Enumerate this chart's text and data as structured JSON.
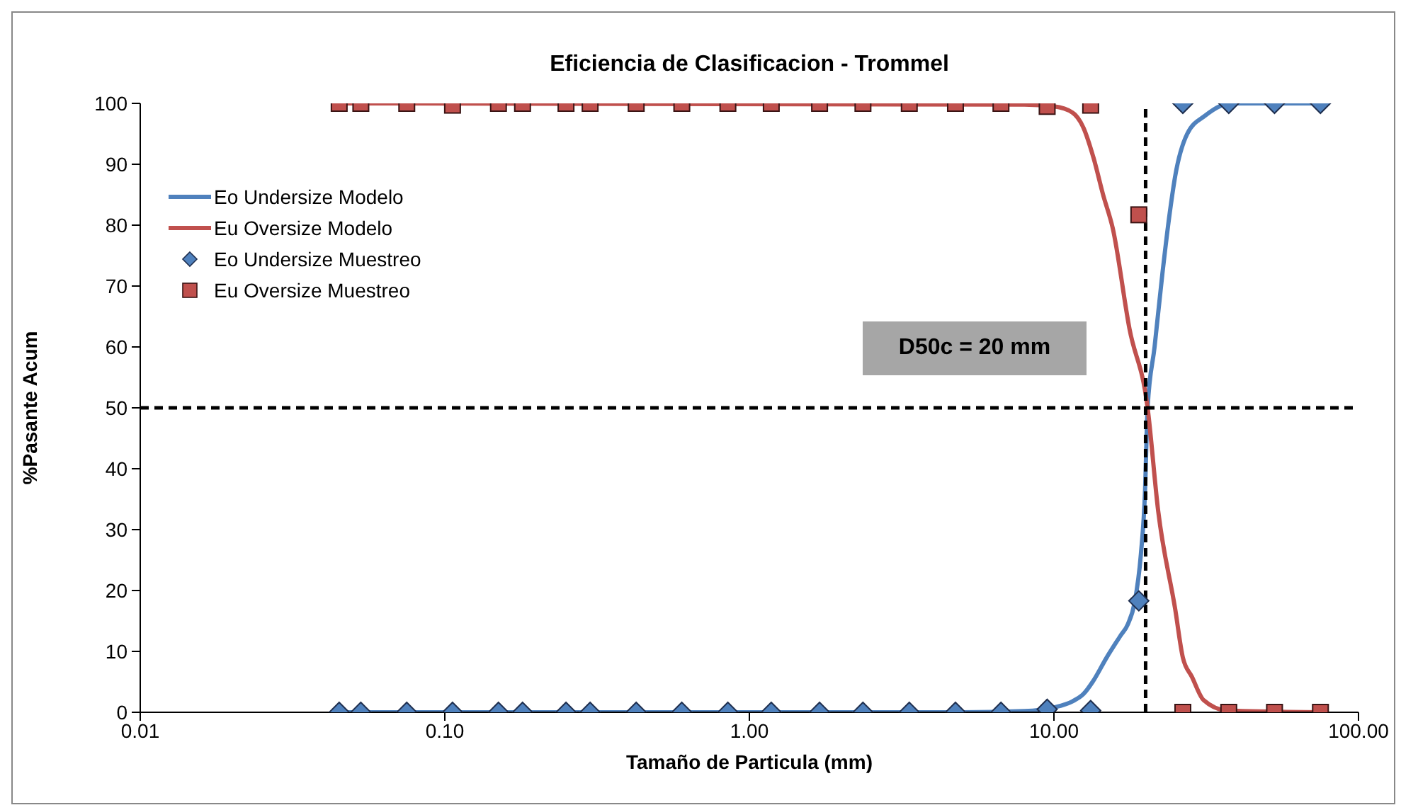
{
  "chart_data": {
    "type": "line",
    "title": "Eficiencia de Clasificacion - Trommel",
    "xlabel": "Tamaño de Particula (mm)",
    "ylabel": "%Pasante Acum",
    "log": "x",
    "xlim": [
      0.01,
      100
    ],
    "xticks": [
      0.01,
      {
        "value": 0.1,
        "label": "0.10"
      },
      {
        "value": 1,
        "label": "1.00"
      },
      {
        "value": 10,
        "label": "10.00"
      },
      {
        "value": 100,
        "label": "100.00"
      }
    ],
    "ylim": [
      0,
      100
    ],
    "yticks": [
      0,
      10,
      20,
      30,
      40,
      50,
      60,
      70,
      80,
      90,
      100
    ],
    "grid": false,
    "legend": "top left",
    "annotations": [
      "D50c = 20 mm"
    ],
    "ref_lines": [
      {
        "axis": "x",
        "value": 20,
        "color": "#000000",
        "line_style": "dashed"
      },
      {
        "axis": "y",
        "value": 50,
        "color": "#000000",
        "line_style": "dashed"
      }
    ],
    "series": [
      {
        "name": "Eo Undersize Modelo",
        "type": "line",
        "marker": "none",
        "color": "#4f81bd",
        "x": [
          0.045,
          5,
          8,
          10,
          11.5,
          12.5,
          13.4,
          14.9,
          16.5,
          17.5,
          18.4,
          19.3,
          19.9,
          20.3,
          21.4,
          22.7,
          24,
          25,
          27.4,
          31.4,
          38,
          75
        ],
        "values": [
          0,
          0,
          0.2,
          0.8,
          1.8,
          3,
          5,
          9,
          12.5,
          14.5,
          18,
          26,
          36,
          50,
          60,
          72,
          82,
          88,
          95,
          98,
          100,
          100
        ]
      },
      {
        "name": "Eu Oversize Modelo",
        "type": "line",
        "marker": "none",
        "color": "#c0504d",
        "x": [
          0.045,
          8,
          10,
          11.5,
          12.5,
          13.5,
          14.5,
          15.6,
          17.7,
          20.3,
          22,
          25,
          26.5,
          28.4,
          31,
          37,
          75
        ],
        "values": [
          100,
          99.8,
          99.5,
          98.5,
          96,
          91,
          85,
          79.5,
          63,
          50,
          33,
          17,
          9,
          5.8,
          2,
          0.3,
          0
        ]
      },
      {
        "name": "Eo Undersize Muestreo",
        "type": "scatter",
        "marker": "diamond",
        "color": "#4f81bd",
        "x": [
          0.045,
          0.053,
          0.075,
          0.106,
          0.15,
          0.18,
          0.25,
          0.3,
          0.425,
          0.6,
          0.85,
          1.18,
          1.7,
          2.36,
          3.35,
          4.75,
          6.7,
          9.5,
          13.2,
          19,
          26.5,
          37.5,
          53,
          75
        ],
        "values": [
          0,
          0,
          0,
          0,
          0,
          0,
          0,
          0,
          0,
          0,
          0,
          0,
          0,
          0,
          0,
          0,
          0,
          0.5,
          0.3,
          18.3,
          100,
          100,
          100,
          100
        ]
      },
      {
        "name": "Eu Oversize Muestreo",
        "type": "scatter",
        "marker": "square",
        "color": "#c0504d",
        "x": [
          0.045,
          0.053,
          0.075,
          0.106,
          0.15,
          0.18,
          0.25,
          0.3,
          0.425,
          0.6,
          0.85,
          1.18,
          1.7,
          2.36,
          3.35,
          4.75,
          6.7,
          9.5,
          13.2,
          19,
          26.5,
          37.5,
          53,
          75
        ],
        "values": [
          100,
          100,
          100,
          99.7,
          100,
          100,
          100,
          100,
          100,
          100,
          100,
          100,
          100,
          100,
          100,
          100,
          100,
          99.5,
          99.7,
          81.7,
          0,
          0,
          0,
          0
        ]
      }
    ]
  }
}
